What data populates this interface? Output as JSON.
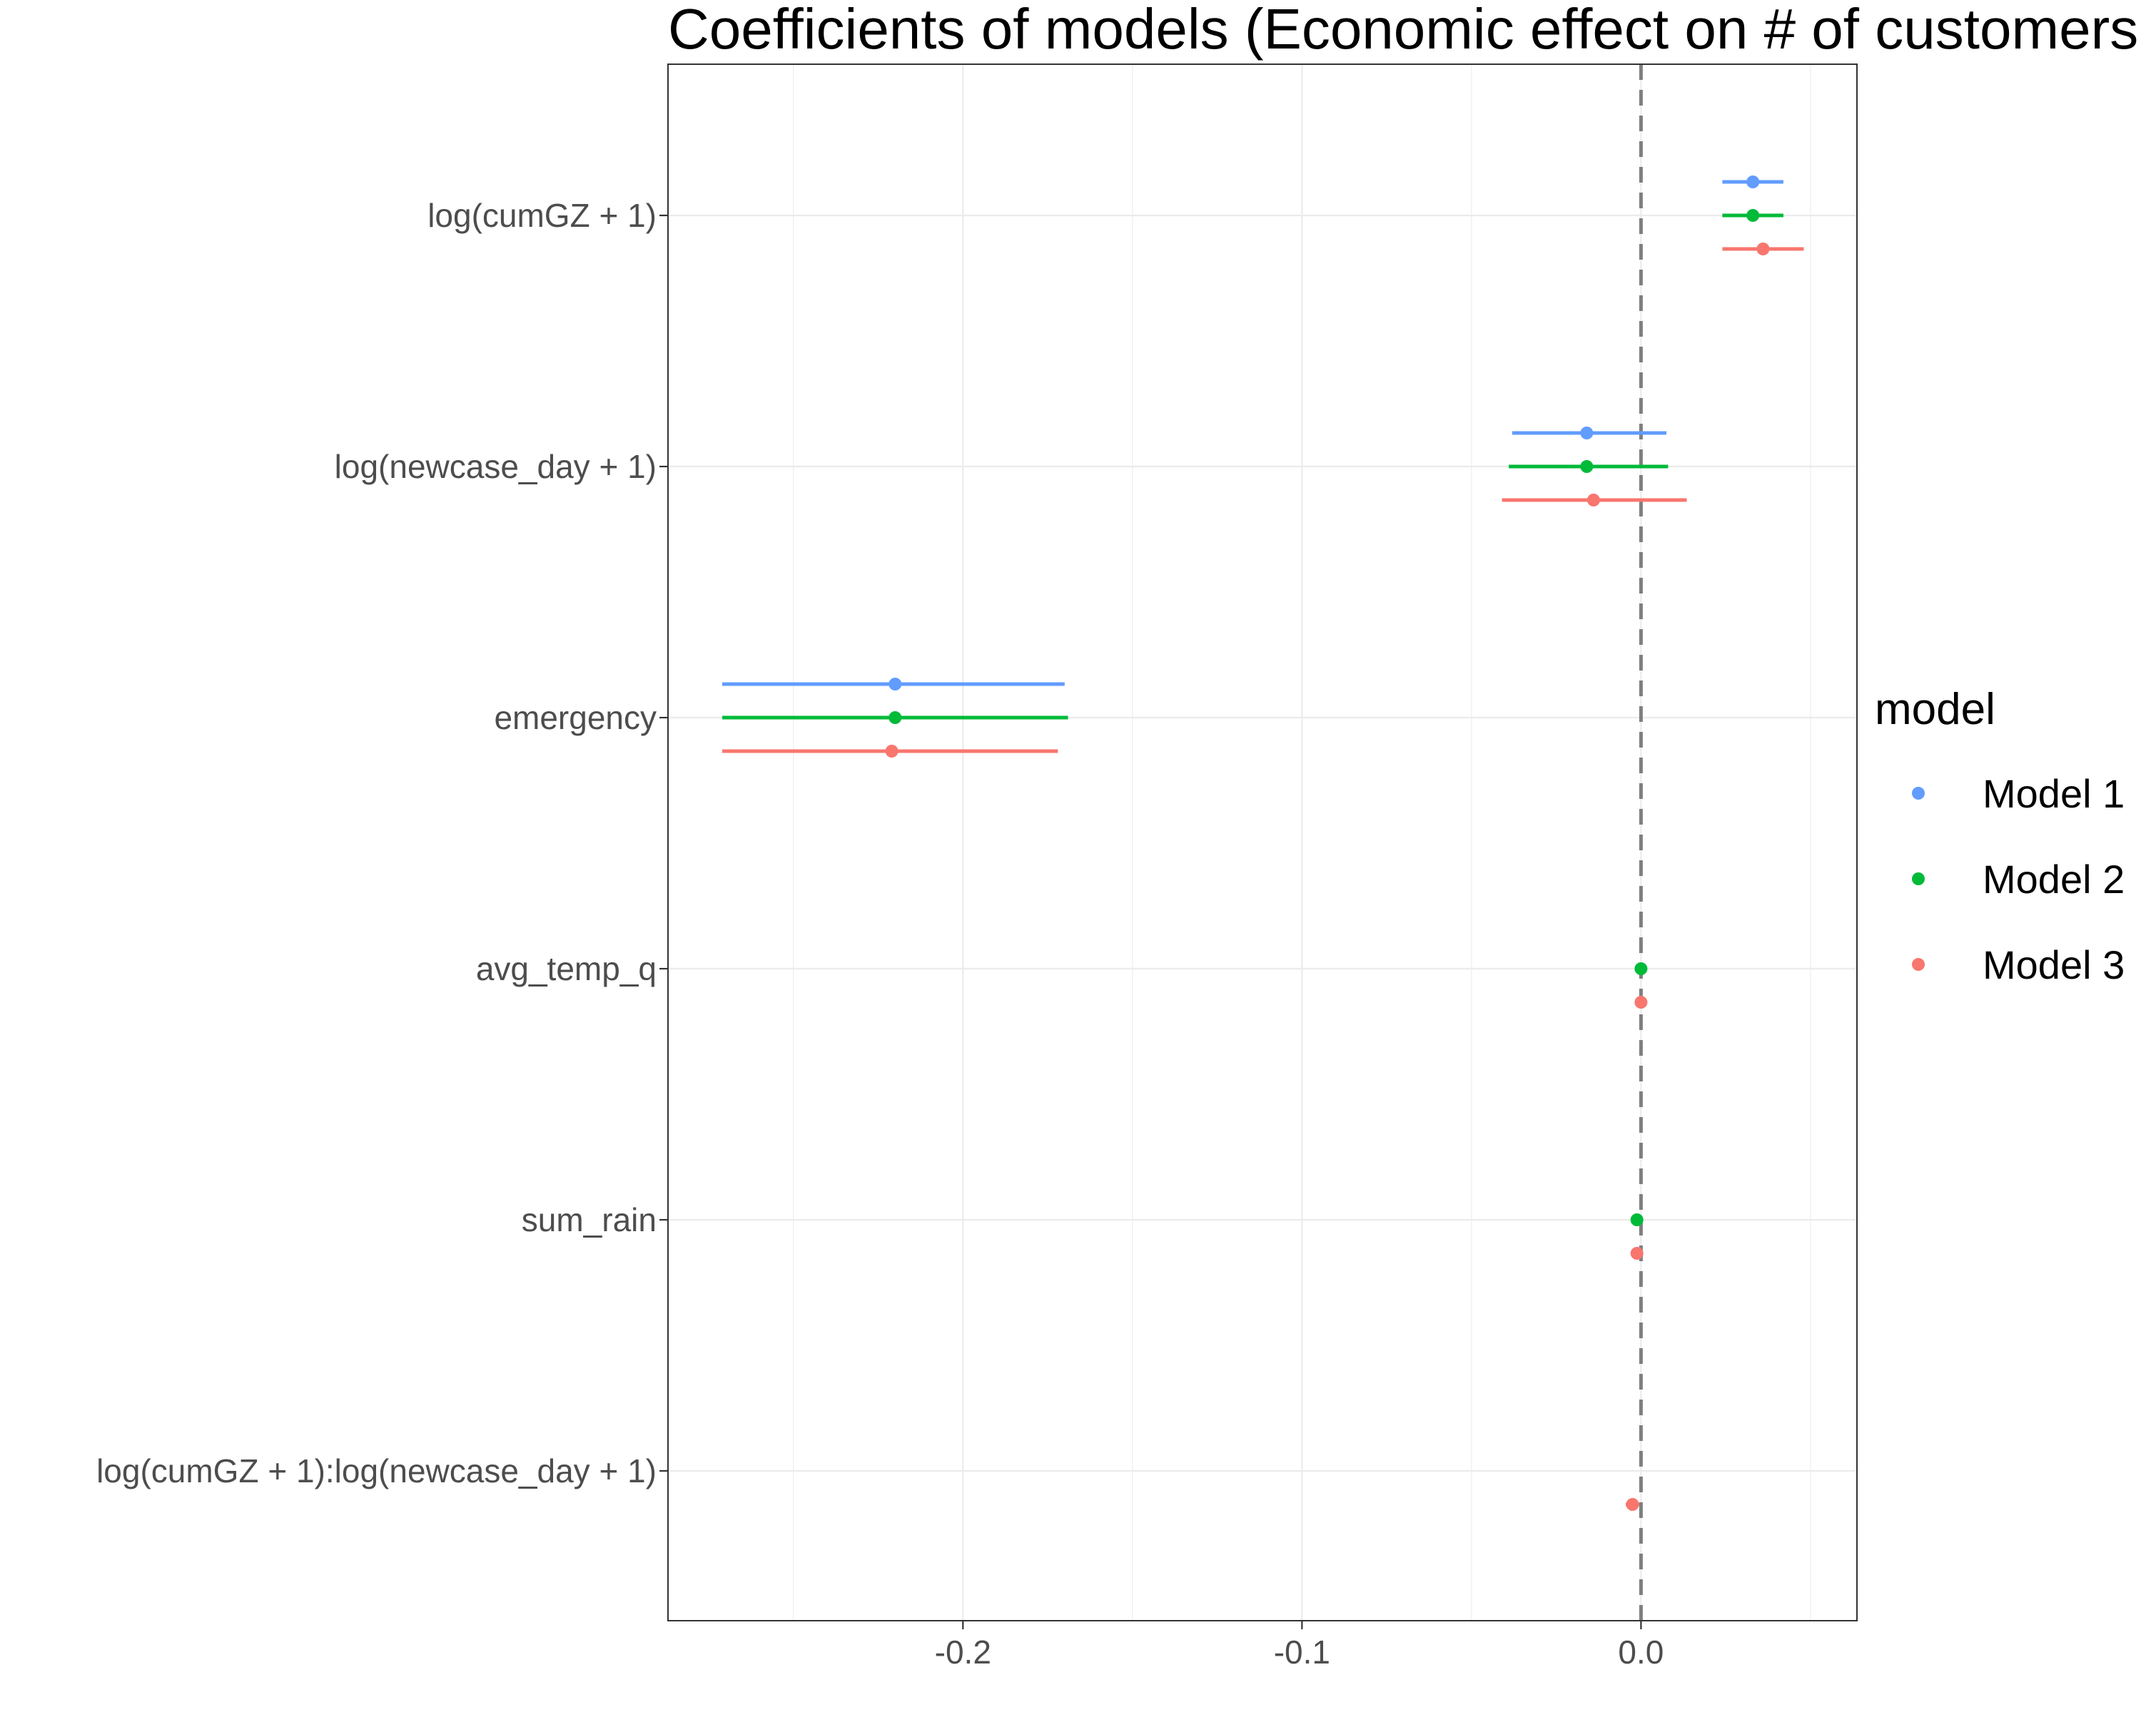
{
  "chart_data": {
    "type": "dot-errorbar",
    "title": "Coefficients of models (Economic effect on # of customers",
    "xlabel": "",
    "ylabel": "",
    "xlim": [
      -0.287,
      0.0637
    ],
    "xticks": [
      -0.2,
      -0.1,
      0.0
    ],
    "xtick_labels": [
      "-0.2",
      "-0.1",
      "0.0"
    ],
    "reference_line": 0.0,
    "grid": true,
    "legend": {
      "title": "model",
      "position": "right"
    },
    "terms": [
      "log(cumGZ + 1)",
      "log(newcase_day + 1)",
      "emergency",
      "avg_temp_q",
      "sum_rain",
      "log(cumGZ + 1):log(newcase_day + 1)"
    ],
    "series": [
      {
        "name": "Model 1",
        "color": "#619CFF",
        "points": [
          {
            "term": "log(cumGZ + 1)",
            "estimate": 0.033,
            "low": 0.024,
            "high": 0.042
          },
          {
            "term": "log(newcase_day + 1)",
            "estimate": -0.016,
            "low": -0.038,
            "high": 0.0075
          },
          {
            "term": "emergency",
            "estimate": -0.22,
            "low": -0.271,
            "high": -0.17
          }
        ]
      },
      {
        "name": "Model 2",
        "color": "#00BA38",
        "points": [
          {
            "term": "log(cumGZ + 1)",
            "estimate": 0.033,
            "low": 0.024,
            "high": 0.042
          },
          {
            "term": "log(newcase_day + 1)",
            "estimate": -0.016,
            "low": -0.039,
            "high": 0.008
          },
          {
            "term": "emergency",
            "estimate": -0.22,
            "low": -0.271,
            "high": -0.169
          },
          {
            "term": "avg_temp_q",
            "estimate": 0.0,
            "low": -0.0005,
            "high": 0.0005
          },
          {
            "term": "sum_rain",
            "estimate": -0.0012,
            "low": -0.0018,
            "high": -0.0006
          }
        ]
      },
      {
        "name": "Model 3",
        "color": "#F8766D",
        "points": [
          {
            "term": "log(cumGZ + 1)",
            "estimate": 0.036,
            "low": 0.024,
            "high": 0.048
          },
          {
            "term": "log(newcase_day + 1)",
            "estimate": -0.014,
            "low": -0.041,
            "high": 0.0135
          },
          {
            "term": "emergency",
            "estimate": -0.221,
            "low": -0.271,
            "high": -0.172
          },
          {
            "term": "avg_temp_q",
            "estimate": 0.0,
            "low": -0.0005,
            "high": 0.0005
          },
          {
            "term": "sum_rain",
            "estimate": -0.0012,
            "low": -0.0018,
            "high": -0.0006
          },
          {
            "term": "log(cumGZ + 1):log(newcase_day + 1)",
            "estimate": -0.0025,
            "low": -0.0045,
            "high": -0.0005
          }
        ]
      }
    ]
  }
}
